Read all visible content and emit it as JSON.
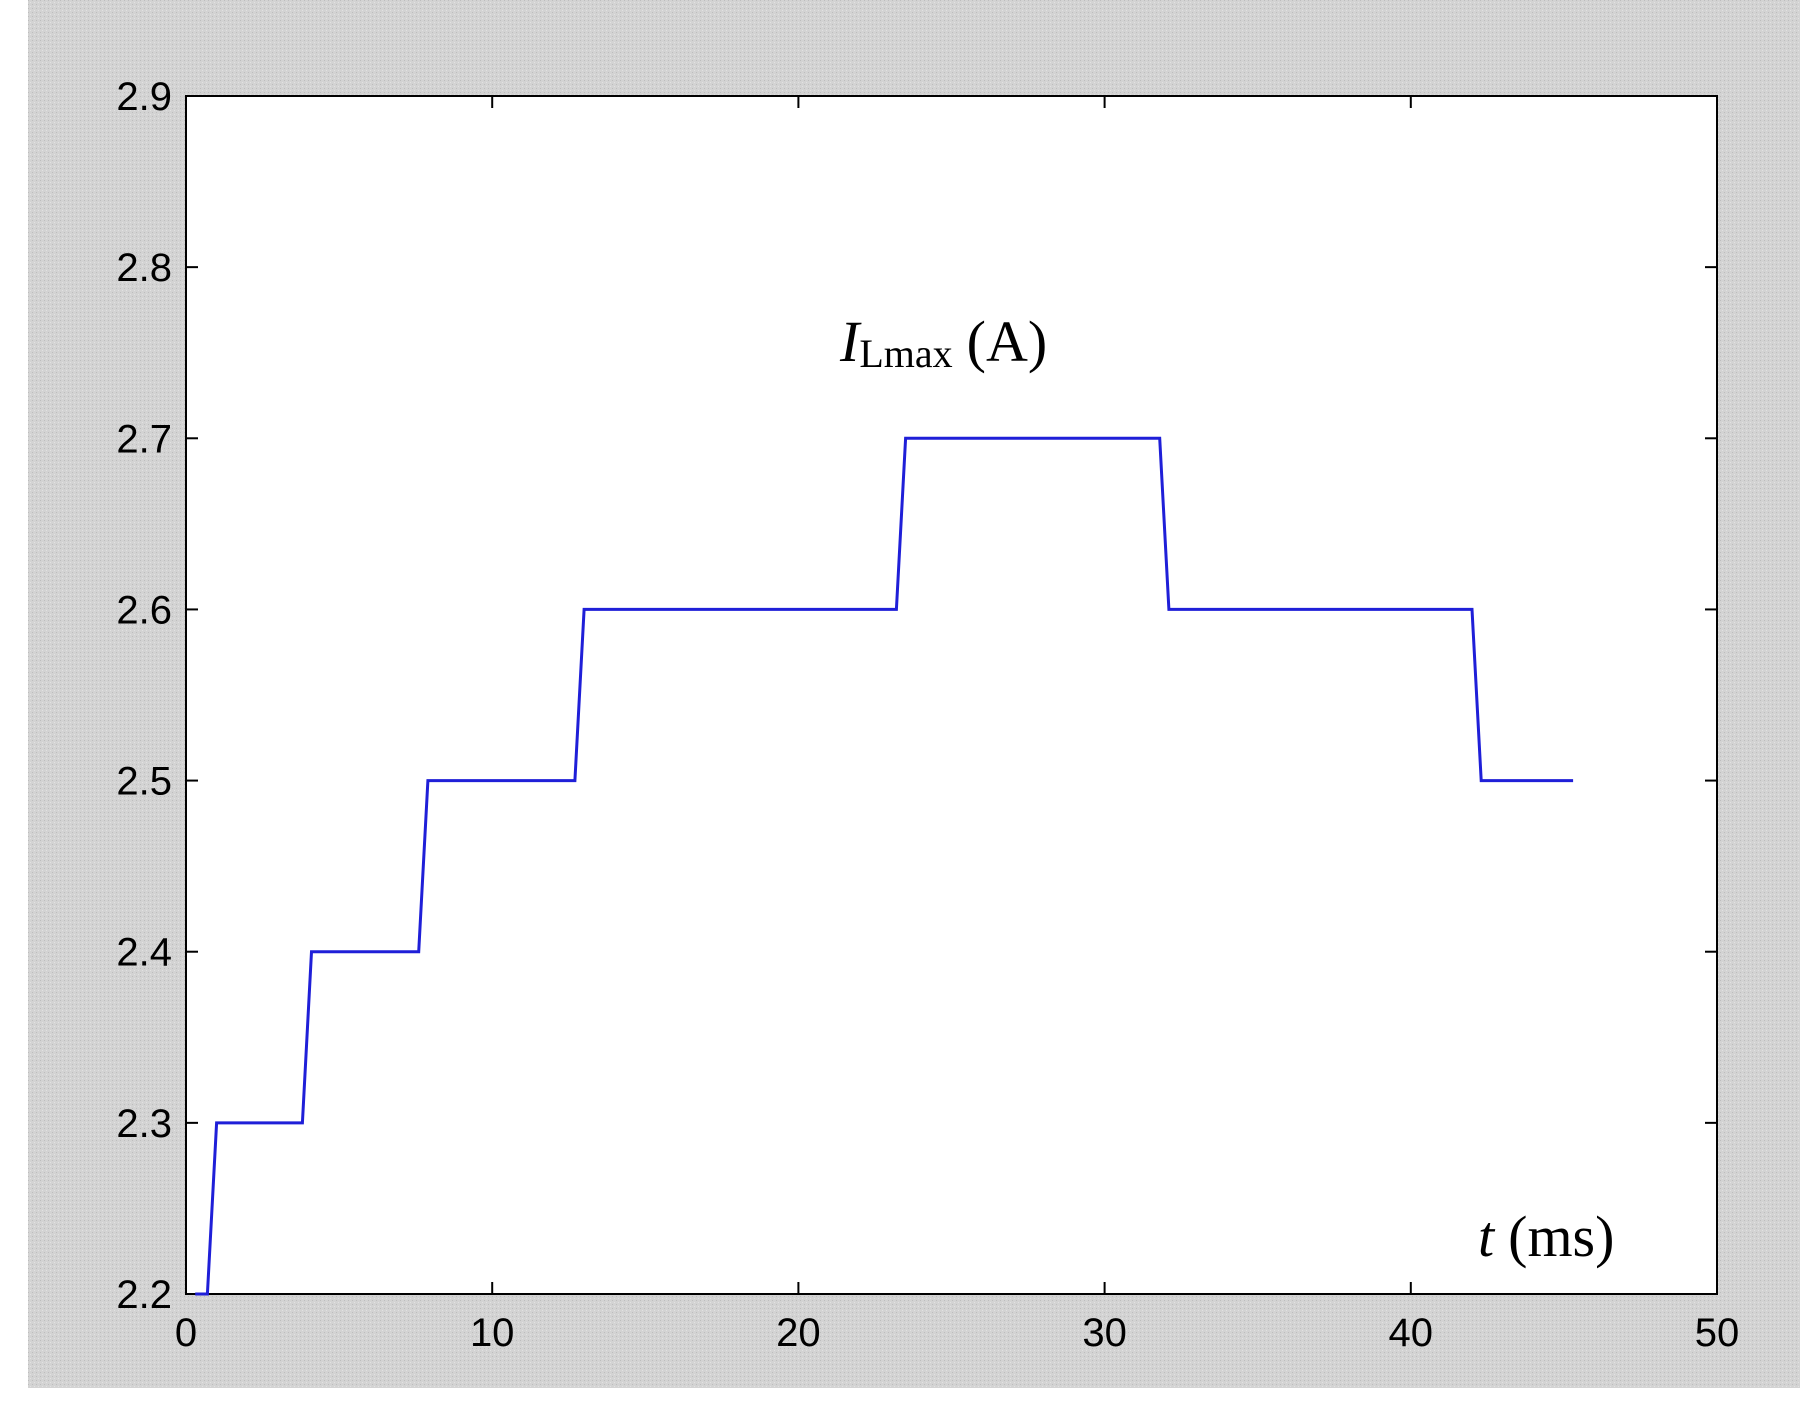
{
  "chart_data": {
    "type": "line",
    "title": "",
    "xlabel": "",
    "ylabel": "",
    "xlim": [
      0,
      50
    ],
    "ylim": [
      2.2,
      2.9
    ],
    "xticks": [
      "0",
      "10",
      "20",
      "30",
      "40",
      "50"
    ],
    "yticks": [
      "2.2",
      "2.3",
      "2.4",
      "2.5",
      "2.6",
      "2.7",
      "2.8",
      "2.9"
    ],
    "grid": false,
    "annotations": {
      "y_main": "I",
      "y_sub": "Lmax",
      "y_unit": "(A)",
      "x_main": "t",
      "x_unit": "(ms)"
    },
    "series": [
      {
        "color": "#1f1fd8",
        "x": [
          0.3,
          0.7,
          1.0,
          1.0,
          3.8,
          4.1,
          4.1,
          7.6,
          7.9,
          7.9,
          12.7,
          13.0,
          13.0,
          23.2,
          23.5,
          23.5,
          31.8,
          32.1,
          32.1,
          42.0,
          42.3,
          42.3,
          45.3
        ],
        "y": [
          2.2,
          2.2,
          2.3,
          2.3,
          2.3,
          2.4,
          2.4,
          2.4,
          2.5,
          2.5,
          2.5,
          2.6,
          2.6,
          2.6,
          2.7,
          2.7,
          2.7,
          2.6,
          2.6,
          2.6,
          2.5,
          2.5,
          2.5
        ]
      }
    ]
  }
}
